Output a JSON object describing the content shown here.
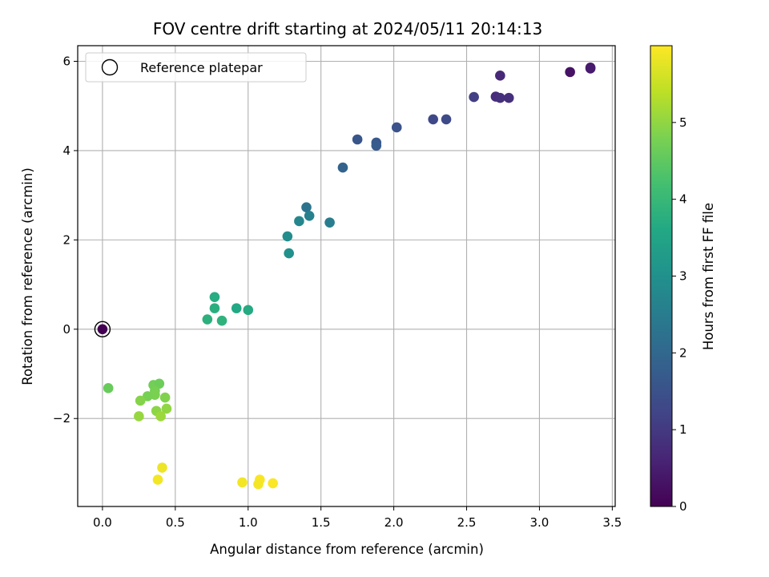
{
  "chart_data": {
    "type": "scatter",
    "title": "FOV centre drift starting at 2024/05/11 20:14:13",
    "xlabel": "Angular distance from reference (arcmin)",
    "ylabel": "Rotation from reference (arcmin)",
    "xlim": [
      -0.17,
      3.52
    ],
    "ylim": [
      -3.97,
      6.35
    ],
    "xticks": [
      {
        "value": 0.0,
        "label": "0.0"
      },
      {
        "value": 0.5,
        "label": "0.5"
      },
      {
        "value": 1.0,
        "label": "1.0"
      },
      {
        "value": 1.5,
        "label": "1.5"
      },
      {
        "value": 2.0,
        "label": "2.0"
      },
      {
        "value": 2.5,
        "label": "2.5"
      },
      {
        "value": 3.0,
        "label": "3.0"
      },
      {
        "value": 3.5,
        "label": "3.5"
      }
    ],
    "yticks": [
      {
        "value": -2,
        "label": "−2"
      },
      {
        "value": 0,
        "label": "0"
      },
      {
        "value": 2,
        "label": "2"
      },
      {
        "value": 4,
        "label": "4"
      },
      {
        "value": 6,
        "label": "6"
      }
    ],
    "grid": true,
    "legend": {
      "position": "upper-left",
      "entries": [
        "Reference platepar"
      ]
    },
    "reference_point": {
      "x": 0.0,
      "y": 0.0
    },
    "colorbar": {
      "label": "Hours from first FF file",
      "colormap": "viridis",
      "range": [
        0,
        6.0
      ],
      "ticks": [
        {
          "value": 0,
          "label": "0"
        },
        {
          "value": 1,
          "label": "1"
        },
        {
          "value": 2,
          "label": "2"
        },
        {
          "value": 3,
          "label": "3"
        },
        {
          "value": 4,
          "label": "4"
        },
        {
          "value": 5,
          "label": "5"
        }
      ]
    },
    "points": [
      {
        "x": 0.0,
        "y": 0.0,
        "c": 0.0
      },
      {
        "x": 3.21,
        "y": 5.76,
        "c": 0.3
      },
      {
        "x": 3.35,
        "y": 5.84,
        "c": 0.4
      },
      {
        "x": 3.35,
        "y": 5.86,
        "c": 0.45
      },
      {
        "x": 2.73,
        "y": 5.68,
        "c": 0.7
      },
      {
        "x": 2.7,
        "y": 5.21,
        "c": 0.75
      },
      {
        "x": 2.73,
        "y": 5.18,
        "c": 0.8
      },
      {
        "x": 2.79,
        "y": 5.18,
        "c": 0.8
      },
      {
        "x": 2.55,
        "y": 5.2,
        "c": 1.1
      },
      {
        "x": 2.27,
        "y": 4.7,
        "c": 1.3
      },
      {
        "x": 2.36,
        "y": 4.7,
        "c": 1.35
      },
      {
        "x": 2.02,
        "y": 4.52,
        "c": 1.5
      },
      {
        "x": 1.75,
        "y": 4.25,
        "c": 1.6
      },
      {
        "x": 1.88,
        "y": 4.18,
        "c": 1.65
      },
      {
        "x": 1.88,
        "y": 4.11,
        "c": 1.7
      },
      {
        "x": 1.65,
        "y": 3.62,
        "c": 1.9
      },
      {
        "x": 1.4,
        "y": 2.73,
        "c": 2.3
      },
      {
        "x": 1.42,
        "y": 2.54,
        "c": 2.6
      },
      {
        "x": 1.35,
        "y": 2.42,
        "c": 2.75
      },
      {
        "x": 1.56,
        "y": 2.39,
        "c": 2.55
      },
      {
        "x": 1.27,
        "y": 2.08,
        "c": 2.9
      },
      {
        "x": 1.28,
        "y": 1.7,
        "c": 3.0
      },
      {
        "x": 0.77,
        "y": 0.72,
        "c": 3.7
      },
      {
        "x": 0.77,
        "y": 0.47,
        "c": 3.75
      },
      {
        "x": 0.92,
        "y": 0.47,
        "c": 3.6
      },
      {
        "x": 1.0,
        "y": 0.43,
        "c": 3.65
      },
      {
        "x": 0.72,
        "y": 0.22,
        "c": 3.8
      },
      {
        "x": 0.82,
        "y": 0.19,
        "c": 3.85
      },
      {
        "x": 0.04,
        "y": -1.32,
        "c": 4.6
      },
      {
        "x": 0.35,
        "y": -1.25,
        "c": 4.7
      },
      {
        "x": 0.39,
        "y": -1.22,
        "c": 4.65
      },
      {
        "x": 0.36,
        "y": -1.38,
        "c": 4.75
      },
      {
        "x": 0.36,
        "y": -1.47,
        "c": 4.8
      },
      {
        "x": 0.31,
        "y": -1.5,
        "c": 4.75
      },
      {
        "x": 0.43,
        "y": -1.53,
        "c": 4.85
      },
      {
        "x": 0.26,
        "y": -1.6,
        "c": 4.9
      },
      {
        "x": 0.37,
        "y": -1.83,
        "c": 4.95
      },
      {
        "x": 0.44,
        "y": -1.78,
        "c": 5.0
      },
      {
        "x": 0.25,
        "y": -1.95,
        "c": 5.05
      },
      {
        "x": 0.4,
        "y": -1.95,
        "c": 5.1
      },
      {
        "x": 0.41,
        "y": -3.1,
        "c": 5.85
      },
      {
        "x": 0.38,
        "y": -3.37,
        "c": 5.9
      },
      {
        "x": 0.96,
        "y": -3.43,
        "c": 5.9
      },
      {
        "x": 1.08,
        "y": -3.37,
        "c": 5.95
      },
      {
        "x": 1.07,
        "y": -3.47,
        "c": 5.92
      },
      {
        "x": 1.17,
        "y": -3.45,
        "c": 5.97
      }
    ]
  }
}
